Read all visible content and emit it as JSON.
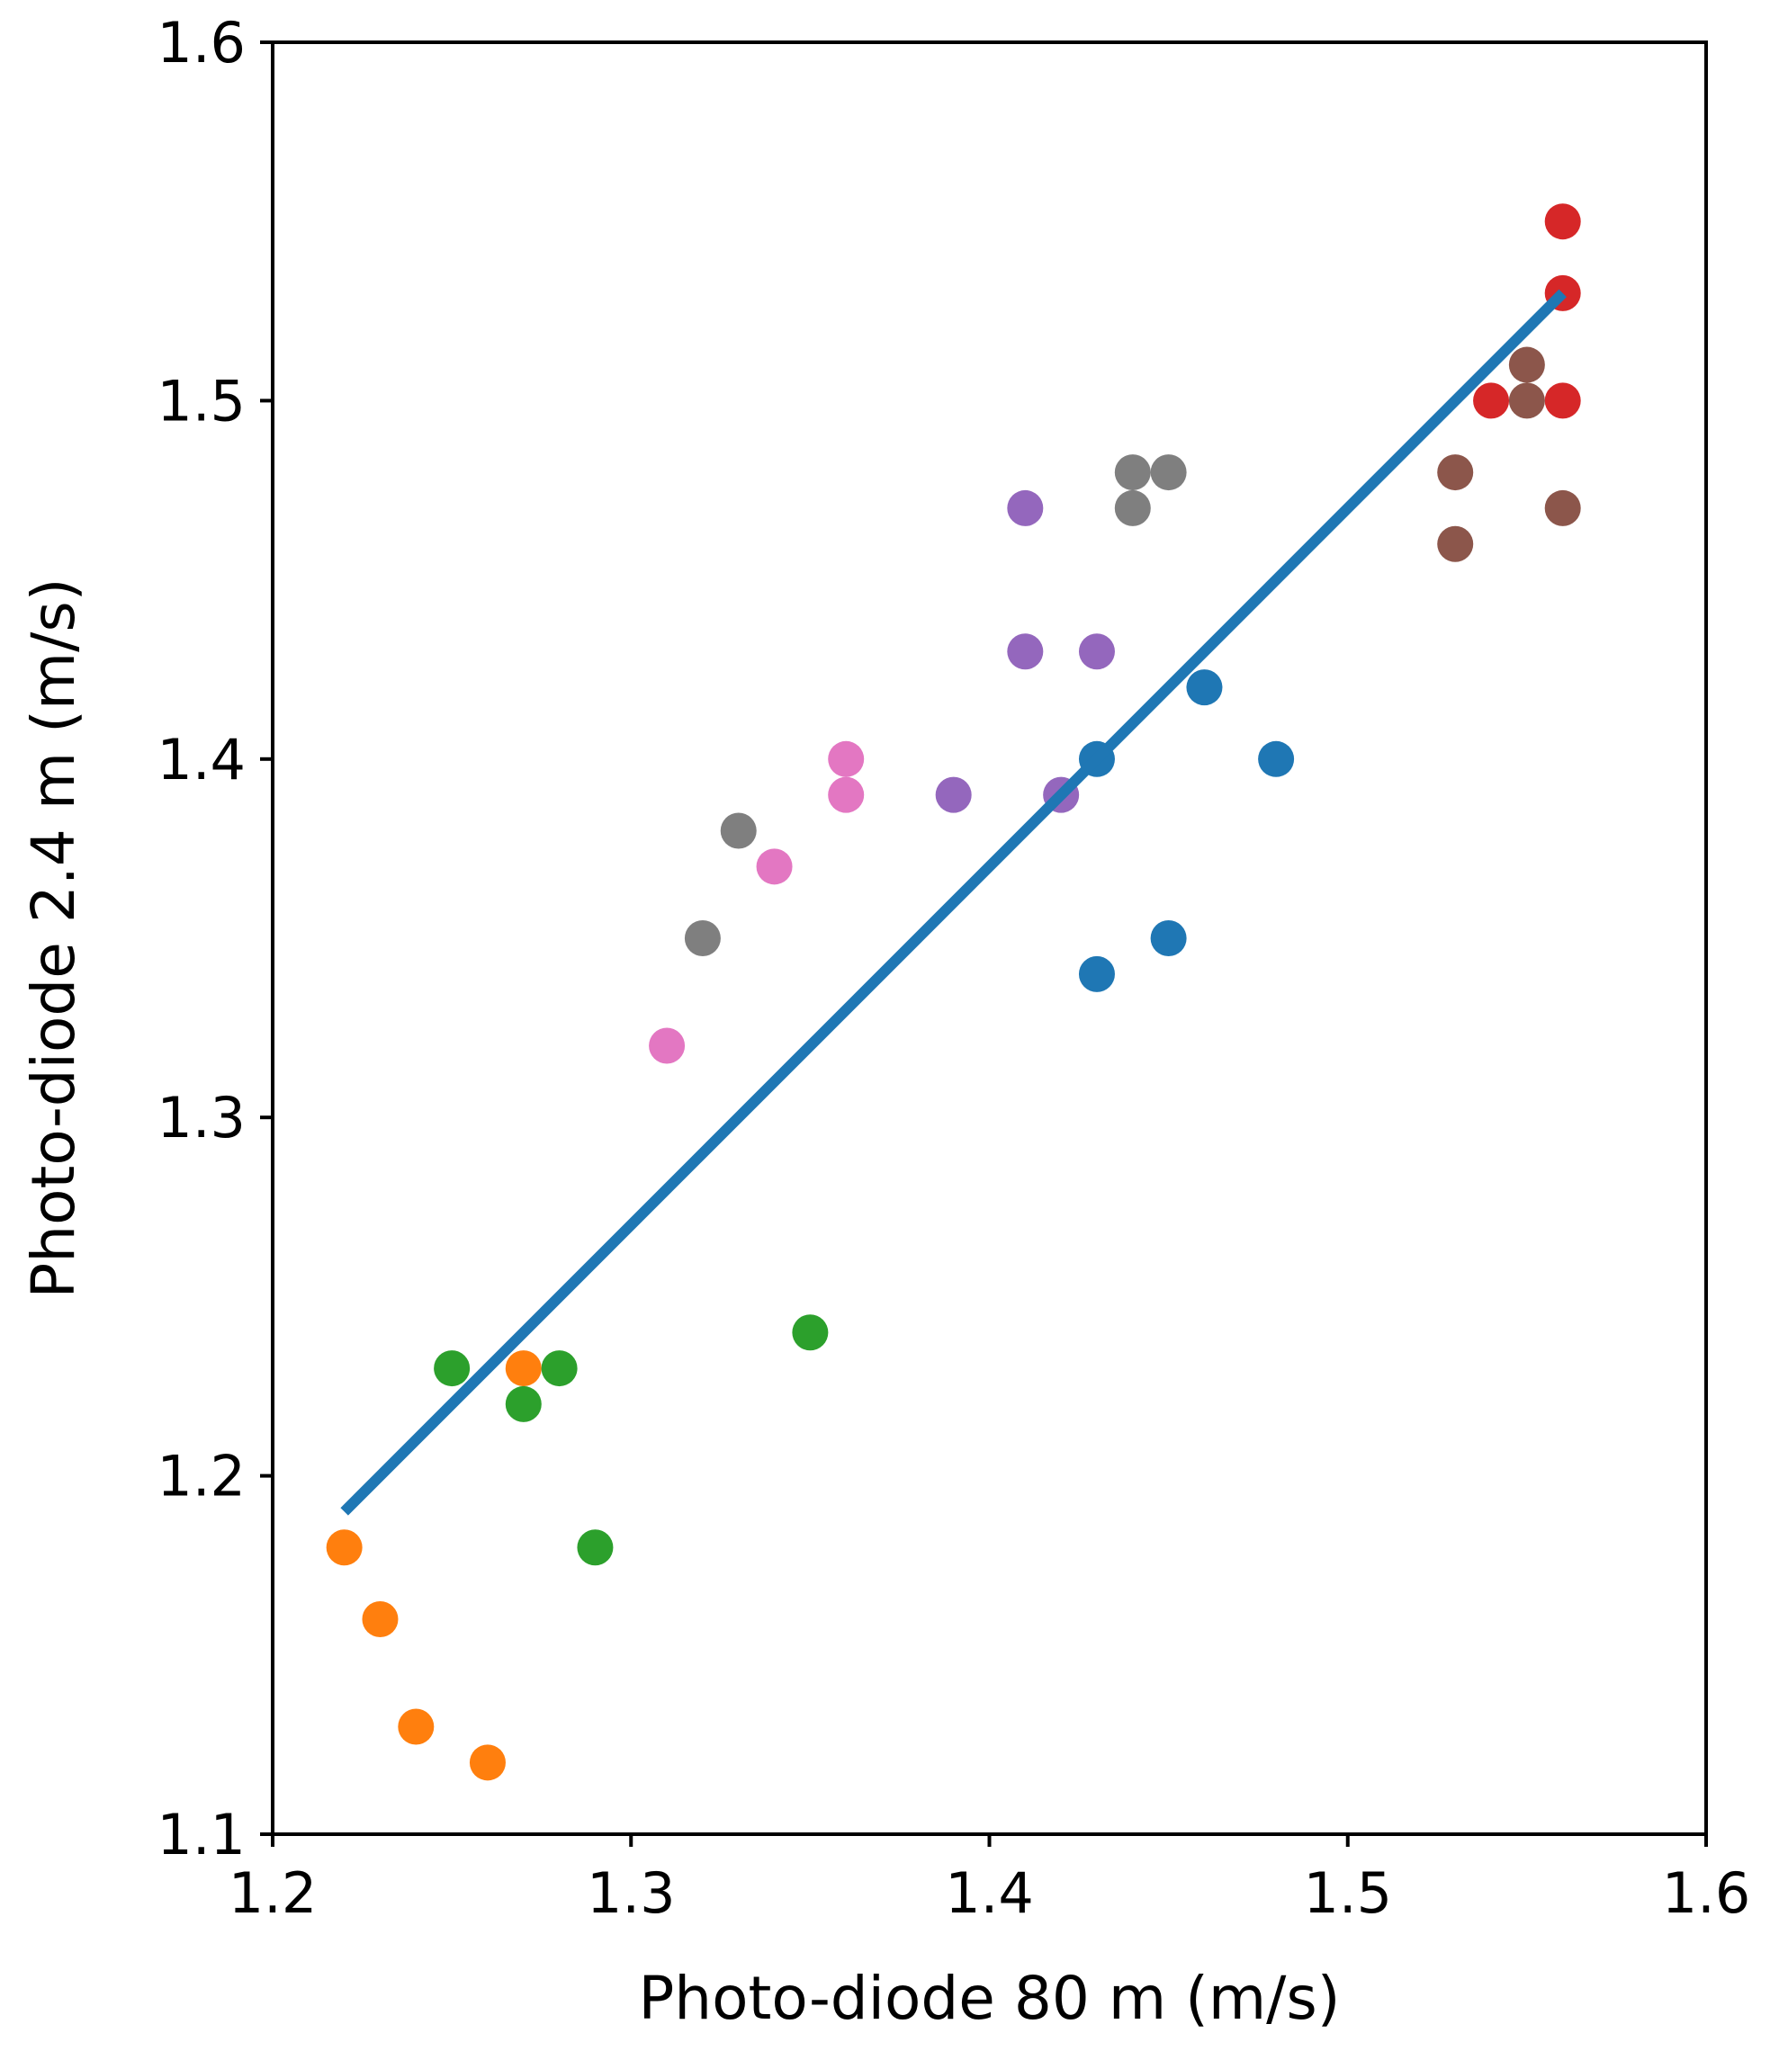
{
  "chart_data": {
    "type": "scatter",
    "title": "",
    "xlabel": "Photo-diode 80 m (m/s)",
    "ylabel": "Photo-diode 2.4 m (m/s)",
    "xlim": [
      1.2,
      1.6
    ],
    "ylim": [
      1.1,
      1.6
    ],
    "xticks": [
      "1.2",
      "1.3",
      "1.4",
      "1.5",
      "1.6"
    ],
    "yticks": [
      "1.1",
      "1.2",
      "1.3",
      "1.4",
      "1.5",
      "1.6"
    ],
    "grid": false,
    "series": [
      {
        "name": "blue",
        "color": "#1f77b4",
        "points": [
          [
            1.43,
            1.4
          ],
          [
            1.46,
            1.42
          ],
          [
            1.48,
            1.4
          ],
          [
            1.45,
            1.35
          ],
          [
            1.43,
            1.34
          ]
        ]
      },
      {
        "name": "orange",
        "color": "#ff7f0e",
        "points": [
          [
            1.22,
            1.18
          ],
          [
            1.23,
            1.16
          ],
          [
            1.24,
            1.13
          ],
          [
            1.26,
            1.12
          ],
          [
            1.27,
            1.23
          ]
        ]
      },
      {
        "name": "green",
        "color": "#2ca02c",
        "points": [
          [
            1.25,
            1.23
          ],
          [
            1.27,
            1.22
          ],
          [
            1.28,
            1.23
          ],
          [
            1.29,
            1.18
          ],
          [
            1.35,
            1.24
          ]
        ]
      },
      {
        "name": "red",
        "color": "#d62728",
        "points": [
          [
            1.56,
            1.55
          ],
          [
            1.56,
            1.53
          ],
          [
            1.54,
            1.5
          ],
          [
            1.56,
            1.5
          ]
        ]
      },
      {
        "name": "purple",
        "color": "#9467bd",
        "points": [
          [
            1.41,
            1.47
          ],
          [
            1.41,
            1.43
          ],
          [
            1.43,
            1.43
          ],
          [
            1.39,
            1.39
          ],
          [
            1.42,
            1.39
          ]
        ]
      },
      {
        "name": "brown",
        "color": "#8c564b",
        "points": [
          [
            1.55,
            1.51
          ],
          [
            1.55,
            1.5
          ],
          [
            1.53,
            1.48
          ],
          [
            1.53,
            1.46
          ],
          [
            1.56,
            1.47
          ]
        ]
      },
      {
        "name": "pink",
        "color": "#e377c2",
        "points": [
          [
            1.36,
            1.4
          ],
          [
            1.36,
            1.39
          ],
          [
            1.34,
            1.37
          ],
          [
            1.31,
            1.32
          ]
        ]
      },
      {
        "name": "gray",
        "color": "#7f7f7f",
        "points": [
          [
            1.44,
            1.48
          ],
          [
            1.45,
            1.48
          ],
          [
            1.44,
            1.47
          ],
          [
            1.33,
            1.38
          ],
          [
            1.32,
            1.35
          ]
        ]
      }
    ],
    "fit_line": {
      "color": "#1f77b4",
      "points": [
        [
          1.22,
          1.19
        ],
        [
          1.56,
          1.53
        ]
      ]
    }
  }
}
